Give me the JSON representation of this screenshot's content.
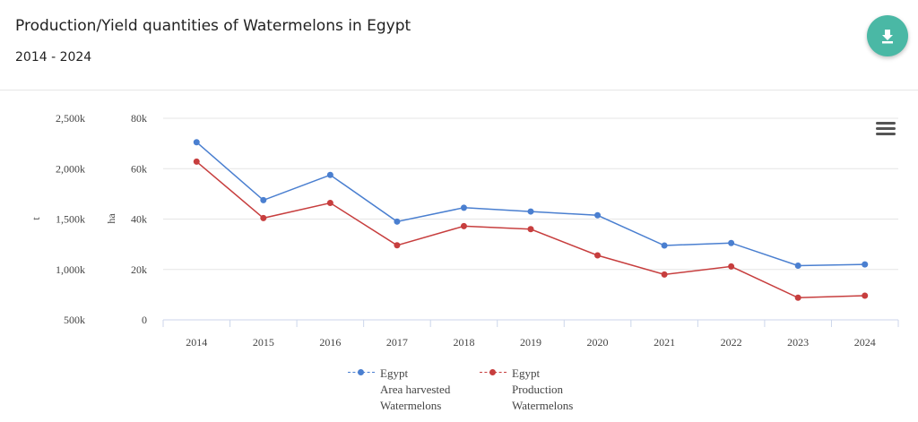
{
  "title": "Production/Yield quantities of Watermelons in Egypt",
  "subtitle": "2014 - 2024",
  "icons": {
    "download": "download-icon",
    "menu": "hamburger-menu-icon"
  },
  "colors": {
    "accent": "#4ab8a5",
    "series_area": "#4a7fd0",
    "series_production": "#c73e3e"
  },
  "chart_data": {
    "type": "line",
    "categories": [
      "2014",
      "2015",
      "2016",
      "2017",
      "2018",
      "2019",
      "2020",
      "2021",
      "2022",
      "2023",
      "2024"
    ],
    "left_axis": {
      "title": "t",
      "ticks": [
        "2,500k",
        "2,000k",
        "1,500k",
        "1,000k",
        "500k"
      ],
      "range": [
        500000,
        2500000
      ]
    },
    "right_axis": {
      "title": "ha",
      "ticks": [
        "80k",
        "60k",
        "40k",
        "20k",
        "0"
      ],
      "range": [
        0,
        80000
      ]
    },
    "series": [
      {
        "name": "Egypt Area harvested Watermelons",
        "legend_lines": [
          "Egypt",
          "Area harvested",
          "Watermelons"
        ],
        "axis": "ha",
        "values": [
          70500,
          47500,
          57500,
          39000,
          44500,
          43000,
          41500,
          29500,
          30500,
          21500,
          22000
        ]
      },
      {
        "name": "Egypt Production Watermelons",
        "legend_lines": [
          "Egypt",
          "Production",
          "Watermelons"
        ],
        "axis": "t",
        "values": [
          2070000,
          1510000,
          1660000,
          1240000,
          1430000,
          1400000,
          1140000,
          950000,
          1030000,
          720000,
          740000
        ]
      }
    ]
  }
}
